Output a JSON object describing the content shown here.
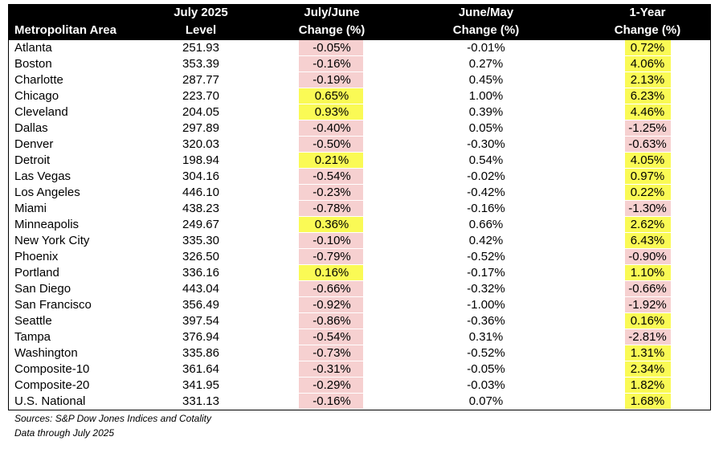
{
  "table": {
    "columns": [
      [
        "Metropolitan Area"
      ],
      [
        "July 2025",
        "Level"
      ],
      [
        "July/June",
        "Change (%)"
      ],
      [
        "June/May",
        "Change (%)"
      ],
      [
        "1-Year",
        "Change (%)"
      ]
    ],
    "rows": [
      [
        "Atlanta",
        "251.93",
        "-0.05%",
        "-0.01%",
        "0.72%"
      ],
      [
        "Boston",
        "353.39",
        "-0.16%",
        "0.27%",
        "4.06%"
      ],
      [
        "Charlotte",
        "287.77",
        "-0.19%",
        "0.45%",
        "2.13%"
      ],
      [
        "Chicago",
        "223.70",
        "0.65%",
        "1.00%",
        "6.23%"
      ],
      [
        "Cleveland",
        "204.05",
        "0.93%",
        "0.39%",
        "4.46%"
      ],
      [
        "Dallas",
        "297.89",
        "-0.40%",
        "0.05%",
        "-1.25%"
      ],
      [
        "Denver",
        "320.03",
        "-0.50%",
        "-0.30%",
        "-0.63%"
      ],
      [
        "Detroit",
        "198.94",
        "0.21%",
        "0.54%",
        "4.05%"
      ],
      [
        "Las Vegas",
        "304.16",
        "-0.54%",
        "-0.02%",
        "0.97%"
      ],
      [
        "Los Angeles",
        "446.10",
        "-0.23%",
        "-0.42%",
        "0.22%"
      ],
      [
        "Miami",
        "438.23",
        "-0.78%",
        "-0.16%",
        "-1.30%"
      ],
      [
        "Minneapolis",
        "249.67",
        "0.36%",
        "0.66%",
        "2.62%"
      ],
      [
        "New York City",
        "335.30",
        "-0.10%",
        "0.42%",
        "6.43%"
      ],
      [
        "Phoenix",
        "326.50",
        "-0.79%",
        "-0.52%",
        "-0.90%"
      ],
      [
        "Portland",
        "336.16",
        "0.16%",
        "-0.17%",
        "1.10%"
      ],
      [
        "San Diego",
        "443.04",
        "-0.66%",
        "-0.32%",
        "-0.66%"
      ],
      [
        "San Francisco",
        "356.49",
        "-0.92%",
        "-1.00%",
        "-1.92%"
      ],
      [
        "Seattle",
        "397.54",
        "-0.86%",
        "-0.36%",
        "0.16%"
      ],
      [
        "Tampa",
        "376.94",
        "-0.54%",
        "0.31%",
        "-2.81%"
      ],
      [
        "Washington",
        "335.86",
        "-0.73%",
        "-0.52%",
        "1.31%"
      ],
      [
        "Composite-10",
        "361.64",
        "-0.31%",
        "-0.05%",
        "2.34%"
      ],
      [
        "Composite-20",
        "341.95",
        "-0.29%",
        "-0.03%",
        "1.82%"
      ],
      [
        "U.S. National",
        "331.13",
        "-0.16%",
        "0.07%",
        "1.68%"
      ]
    ]
  },
  "notes": [
    "Sources: S&P Dow Jones Indices and Cotality",
    "Data through July 2025"
  ]
}
